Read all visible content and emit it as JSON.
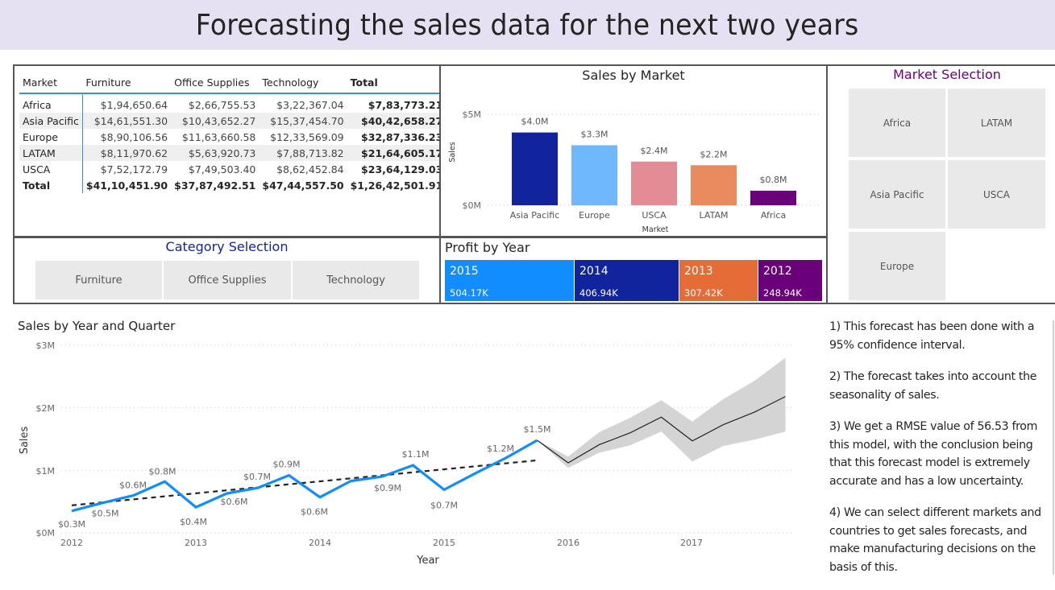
{
  "header": {
    "title": "Forecasting the sales data for the next two years"
  },
  "matrix": {
    "columns": [
      "Market",
      "Furniture",
      "Office Supplies",
      "Technology",
      "Total"
    ],
    "rows": [
      [
        "Africa",
        "$1,94,650.64",
        "$2,66,755.53",
        "$3,22,367.04",
        "$7,83,773.21"
      ],
      [
        "Asia Pacific",
        "$14,61,551.30",
        "$10,43,652.27",
        "$15,37,454.70",
        "$40,42,658.27"
      ],
      [
        "Europe",
        "$8,90,106.56",
        "$11,63,660.58",
        "$12,33,569.09",
        "$32,87,336.23"
      ],
      [
        "LATAM",
        "$8,11,970.62",
        "$5,63,920.73",
        "$7,88,713.82",
        "$21,64,605.17"
      ],
      [
        "USCA",
        "$7,52,172.79",
        "$7,49,503.40",
        "$8,62,452.84",
        "$23,64,129.03"
      ]
    ],
    "total": [
      "Total",
      "$41,10,451.90",
      "$37,87,492.51",
      "$47,44,557.50",
      "$1,26,42,501.91"
    ]
  },
  "sales_by_market": {
    "title": "Sales by Market",
    "xlabel": "Market",
    "ylabel": "Sales",
    "yticks": [
      "$5M",
      "$0M"
    ]
  },
  "market_selection": {
    "title": "Market Selection",
    "options": [
      "Africa",
      "LATAM",
      "Asia Pacific",
      "USCA",
      "Europe"
    ]
  },
  "category_selection": {
    "title": "Category Selection",
    "options": [
      "Furniture",
      "Office Supplies",
      "Technology"
    ]
  },
  "profit_by_year": {
    "title": "Profit by Year",
    "items": [
      {
        "year": "2015",
        "value": "504.17K",
        "color": "#118dff"
      },
      {
        "year": "2014",
        "value": "406.94K",
        "color": "#12239e"
      },
      {
        "year": "2013",
        "value": "307.42K",
        "color": "#e66c37"
      },
      {
        "year": "2012",
        "value": "248.94K",
        "color": "#6b007b"
      }
    ]
  },
  "sales_by_year_quarter": {
    "title": "Sales by Year and Quarter",
    "xlabel": "Year",
    "ylabel": "Sales",
    "yticks": [
      "$3M",
      "$2M",
      "$1M",
      "$0M"
    ],
    "xticks": [
      "2012",
      "2013",
      "2014",
      "2015",
      "2016",
      "2017"
    ]
  },
  "notes": [
    "1) This forecast has been done with a 95% confidence interval.",
    "2) The forecast takes into account the seasonality of sales.",
    "3) We get a RMSE value of 56.53 from this model, with the conclusion being that this forecast model is extremely accurate and has a low uncertainty.",
    "4) We can select different markets and countries to get sales forecasts, and make manufacturing decisions on the basis of this."
  ],
  "chart_data": [
    {
      "type": "bar",
      "title": "Sales by Market",
      "xlabel": "Market",
      "ylabel": "Sales",
      "categories": [
        "Asia Pacific",
        "Europe",
        "USCA",
        "LATAM",
        "Africa"
      ],
      "values": [
        4.0,
        3.3,
        2.4,
        2.2,
        0.8
      ],
      "labels": [
        "$4.0M",
        "$3.3M",
        "$2.4M",
        "$2.2M",
        "$0.8M"
      ],
      "colors": [
        "#12239e",
        "#6fb8fd",
        "#e48c96",
        "#ea8a5f",
        "#6b007b"
      ],
      "ylim": [
        0,
        5
      ],
      "unit": "$M",
      "grid": true
    },
    {
      "type": "treemap",
      "title": "Profit by Year",
      "categories": [
        "2015",
        "2014",
        "2013",
        "2012"
      ],
      "values": [
        504.17,
        406.94,
        307.42,
        248.94
      ],
      "unit": "K"
    },
    {
      "type": "line",
      "title": "Sales by Year and Quarter",
      "xlabel": "Year",
      "ylabel": "Sales",
      "ylim": [
        0,
        3
      ],
      "unit": "$M",
      "grid": true,
      "x": [
        "2012Q1",
        "2012Q2",
        "2012Q3",
        "2012Q4",
        "2013Q1",
        "2013Q2",
        "2013Q3",
        "2013Q4",
        "2014Q1",
        "2014Q2",
        "2014Q3",
        "2014Q4",
        "2015Q1",
        "2015Q2",
        "2015Q3",
        "2015Q4"
      ],
      "series": [
        {
          "name": "Sales",
          "color": "#118dff",
          "values": [
            0.35,
            0.48,
            0.6,
            0.82,
            0.41,
            0.63,
            0.72,
            0.92,
            0.57,
            0.83,
            0.9,
            1.08,
            0.69,
            0.95,
            1.2,
            1.48
          ],
          "labels": [
            "$0.3M",
            "$0.5M",
            "$0.6M",
            "$0.8M",
            "$0.4M",
            "$0.6M",
            "$0.7M",
            "$0.9M",
            "$0.6M",
            "",
            "$0.9M",
            "$1.1M",
            "$0.7M",
            "",
            "$1.2M",
            "$1.5M"
          ]
        },
        {
          "name": "Trend",
          "style": "dashed",
          "color": "#252423",
          "start": 0.44,
          "end": 1.16
        },
        {
          "name": "Forecast",
          "color": "#252423",
          "x": [
            "2015Q4",
            "2016Q1",
            "2016Q2",
            "2016Q3",
            "2016Q4",
            "2017Q1",
            "2017Q2",
            "2017Q3",
            "2017Q4"
          ],
          "values": [
            1.48,
            1.12,
            1.41,
            1.6,
            1.85,
            1.47,
            1.73,
            1.93,
            2.18
          ],
          "upper": [
            1.48,
            1.22,
            1.61,
            1.84,
            2.12,
            1.78,
            2.14,
            2.43,
            2.8
          ],
          "lower": [
            1.48,
            1.04,
            1.28,
            1.4,
            1.62,
            1.14,
            1.39,
            1.49,
            1.62
          ],
          "confidence": "95%"
        }
      ]
    }
  ]
}
